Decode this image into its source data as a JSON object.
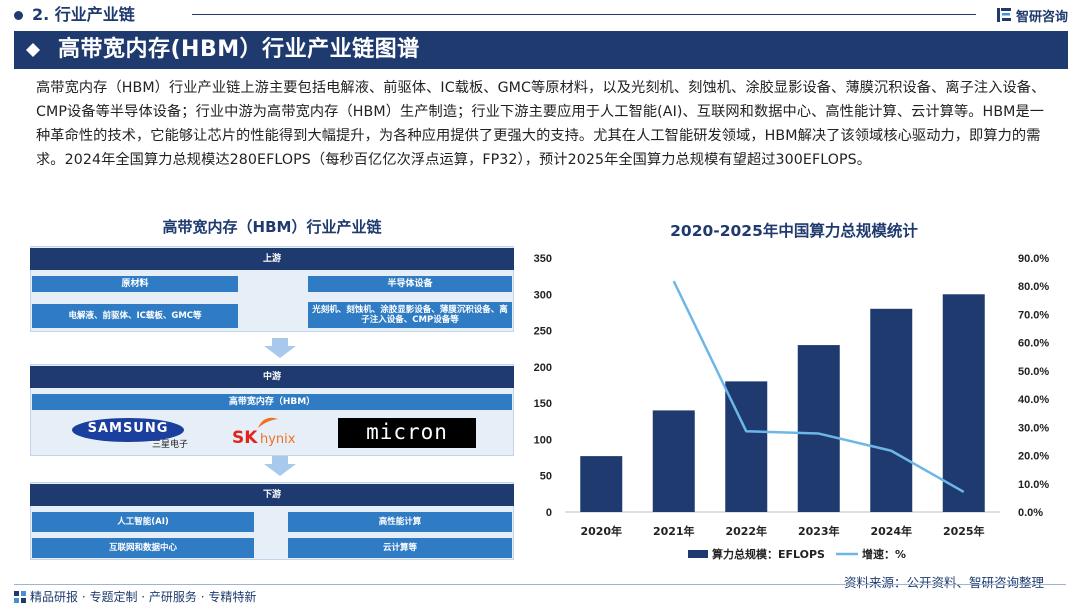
{
  "header": {
    "section_label": "2. 行业产业链",
    "brand_name": "智研咨询"
  },
  "banner": {
    "title": "高带宽内存(HBM）行业产业链图谱"
  },
  "intro": {
    "text": "高带宽内存（HBM）行业产业链上游主要包括电解液、前驱体、IC载板、GMC等原材料，以及光刻机、刻蚀机、涂胶显影设备、薄膜沉积设备、离子注入设备、CMP设备等半导体设备；行业中游为高带宽内存（HBM）生产制造；行业下游主要应用于人工智能(AI)、互联网和数据中心、高性能计算、云计算等。HBM是一种革命性的技术，它能够让芯片的性能得到大幅提升，为各种应用提供了更强大的支持。尤其在人工智能研发领域，HBM解决了该领域核心驱动力，即算力的需求。2024年全国算力总规模达280EFLOPS（每秒百亿亿次浮点运算，FP32），预计2025年全国算力总规模有望超过300EFLOPS。"
  },
  "chain": {
    "title": "高带宽内存（HBM）行业产业链",
    "upstream": {
      "label": "上游",
      "raw_materials": {
        "label": "原材料",
        "items": "电解液、前驱体、IC载板、GMC等"
      },
      "equipment": {
        "label": "半导体设备",
        "items": "光刻机、刻蚀机、涂胶显影设备、薄膜沉积设备、离子注入设备、CMP设备等"
      }
    },
    "midstream": {
      "label": "中游",
      "product": "高带宽内存（HBM）",
      "companies": {
        "samsung": "SAMSUNG",
        "samsung_cn": "三星电子",
        "sk_a": "SK",
        "sk_b": "hynix",
        "micron": "micron"
      }
    },
    "downstream": {
      "label": "下游",
      "items": [
        "人工智能(AI)",
        "高性能计算",
        "互联网和数据中心",
        "云计算等"
      ]
    }
  },
  "chart_data": {
    "type": "bar",
    "title": "2020-2025年中国算力总规模统计",
    "categories": [
      "2020年",
      "2021年",
      "2022年",
      "2023年",
      "2024年",
      "2025年"
    ],
    "series": [
      {
        "name": "算力总规模：EFLOPS",
        "type": "bar",
        "axis": "left",
        "color": "#1e3a6e",
        "values": [
          77,
          140,
          180,
          230,
          280,
          300
        ]
      },
      {
        "name": "增速：%",
        "type": "line",
        "axis": "right",
        "color": "#6db7e8",
        "values": [
          null,
          81.8,
          28.6,
          27.8,
          21.7,
          7.1
        ]
      }
    ],
    "y_left": {
      "min": 0,
      "max": 350,
      "ticks": [
        "0",
        "50",
        "100",
        "150",
        "200",
        "250",
        "300",
        "350"
      ]
    },
    "y_right": {
      "min": 0,
      "max": 90,
      "ticks": [
        "0.0%",
        "10.0%",
        "20.0%",
        "30.0%",
        "40.0%",
        "50.0%",
        "60.0%",
        "70.0%",
        "80.0%",
        "90.0%"
      ]
    },
    "grid": false,
    "legend": "bottom"
  },
  "footer": {
    "tagline": "精品研报 · 专题定制 · 产研服务 · 专精特新",
    "source": "资料来源：公开资料、智研咨询整理"
  },
  "colors": {
    "navy": "#1e3a6e",
    "blue": "#2f7cc4",
    "light_blue": "#6db7e8",
    "panel": "#e6eef7"
  },
  "icons": [
    "brand-logo-icon",
    "diamond-icon",
    "down-arrow-icon",
    "grid-logo-icon"
  ]
}
